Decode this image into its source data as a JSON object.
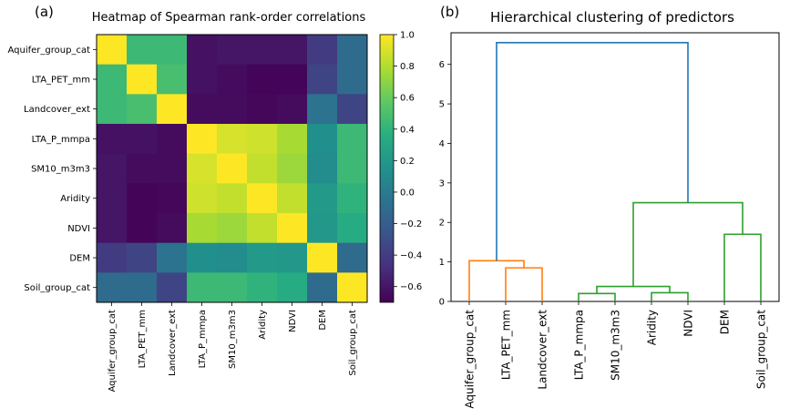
{
  "panel_labels": [
    "(a)",
    "(b)"
  ],
  "chart_data": [
    {
      "type": "heatmap",
      "title": "Heatmap of Spearman rank-order correlations",
      "labels": [
        "Aquifer_group_cat",
        "LTA_PET_mm",
        "Landcover_ext",
        "LTA_P_mmpa",
        "SM10_m3m3",
        "Aridity",
        "NDVI",
        "DEM",
        "Soil_group_cat"
      ],
      "values": [
        [
          1.0,
          0.45,
          0.45,
          -0.62,
          -0.6,
          -0.6,
          -0.6,
          -0.4,
          -0.1
        ],
        [
          0.45,
          1.0,
          0.5,
          -0.62,
          -0.65,
          -0.68,
          -0.68,
          -0.35,
          -0.1
        ],
        [
          0.45,
          0.5,
          1.0,
          -0.65,
          -0.65,
          -0.67,
          -0.65,
          -0.05,
          -0.35
        ],
        [
          -0.62,
          -0.62,
          -0.65,
          1.0,
          0.9,
          0.88,
          0.78,
          0.15,
          0.45
        ],
        [
          -0.6,
          -0.65,
          -0.65,
          0.9,
          1.0,
          0.85,
          0.75,
          0.12,
          0.45
        ],
        [
          -0.6,
          -0.68,
          -0.67,
          0.88,
          0.85,
          1.0,
          0.85,
          0.22,
          0.4
        ],
        [
          -0.6,
          -0.68,
          -0.65,
          0.78,
          0.75,
          0.85,
          1.0,
          0.2,
          0.35
        ],
        [
          -0.4,
          -0.35,
          -0.05,
          0.15,
          0.12,
          0.22,
          0.2,
          1.0,
          -0.1
        ],
        [
          -0.1,
          -0.1,
          -0.35,
          0.45,
          0.45,
          0.4,
          0.35,
          -0.1,
          1.0
        ]
      ],
      "colorbar": {
        "min": -0.7,
        "max": 1.0,
        "ticks": [
          1.0,
          0.8,
          0.6,
          0.4,
          0.2,
          0.0,
          -0.2,
          -0.4,
          -0.6
        ]
      },
      "colormap": "viridis"
    },
    {
      "type": "dendrogram",
      "title": "Hierarchical clustering of predictors",
      "leaves": [
        "Aquifer_group_cat",
        "LTA_PET_mm",
        "Landcover_ext",
        "LTA_P_mmpa",
        "SM10_m3m3",
        "Aridity",
        "NDVI",
        "DEM",
        "Soil_group_cat"
      ],
      "ylim": [
        0,
        6.8
      ],
      "yticks": [
        0,
        1,
        2,
        3,
        4,
        5,
        6
      ],
      "links": [
        {
          "left": 1,
          "right": 2,
          "height": 0.85,
          "cluster": "orange"
        },
        {
          "left": 0,
          "right": "1-2",
          "height": 1.03,
          "cluster": "orange"
        },
        {
          "left": 3,
          "right": 4,
          "height": 0.2,
          "cluster": "green"
        },
        {
          "left": 5,
          "right": 6,
          "height": 0.22,
          "cluster": "green"
        },
        {
          "left": "3-4",
          "right": "5-6",
          "height": 0.38,
          "cluster": "green"
        },
        {
          "left": 7,
          "right": 8,
          "height": 1.7,
          "cluster": "green"
        },
        {
          "left": "3-6",
          "right": "7-8",
          "height": 2.5,
          "cluster": "green"
        },
        {
          "left": "0-2",
          "right": "3-8",
          "height": 6.55,
          "cluster": "blue"
        }
      ],
      "colors": {
        "orange": "#ff7f0e",
        "green": "#2ca02c",
        "blue": "#1f77b4"
      }
    }
  ]
}
